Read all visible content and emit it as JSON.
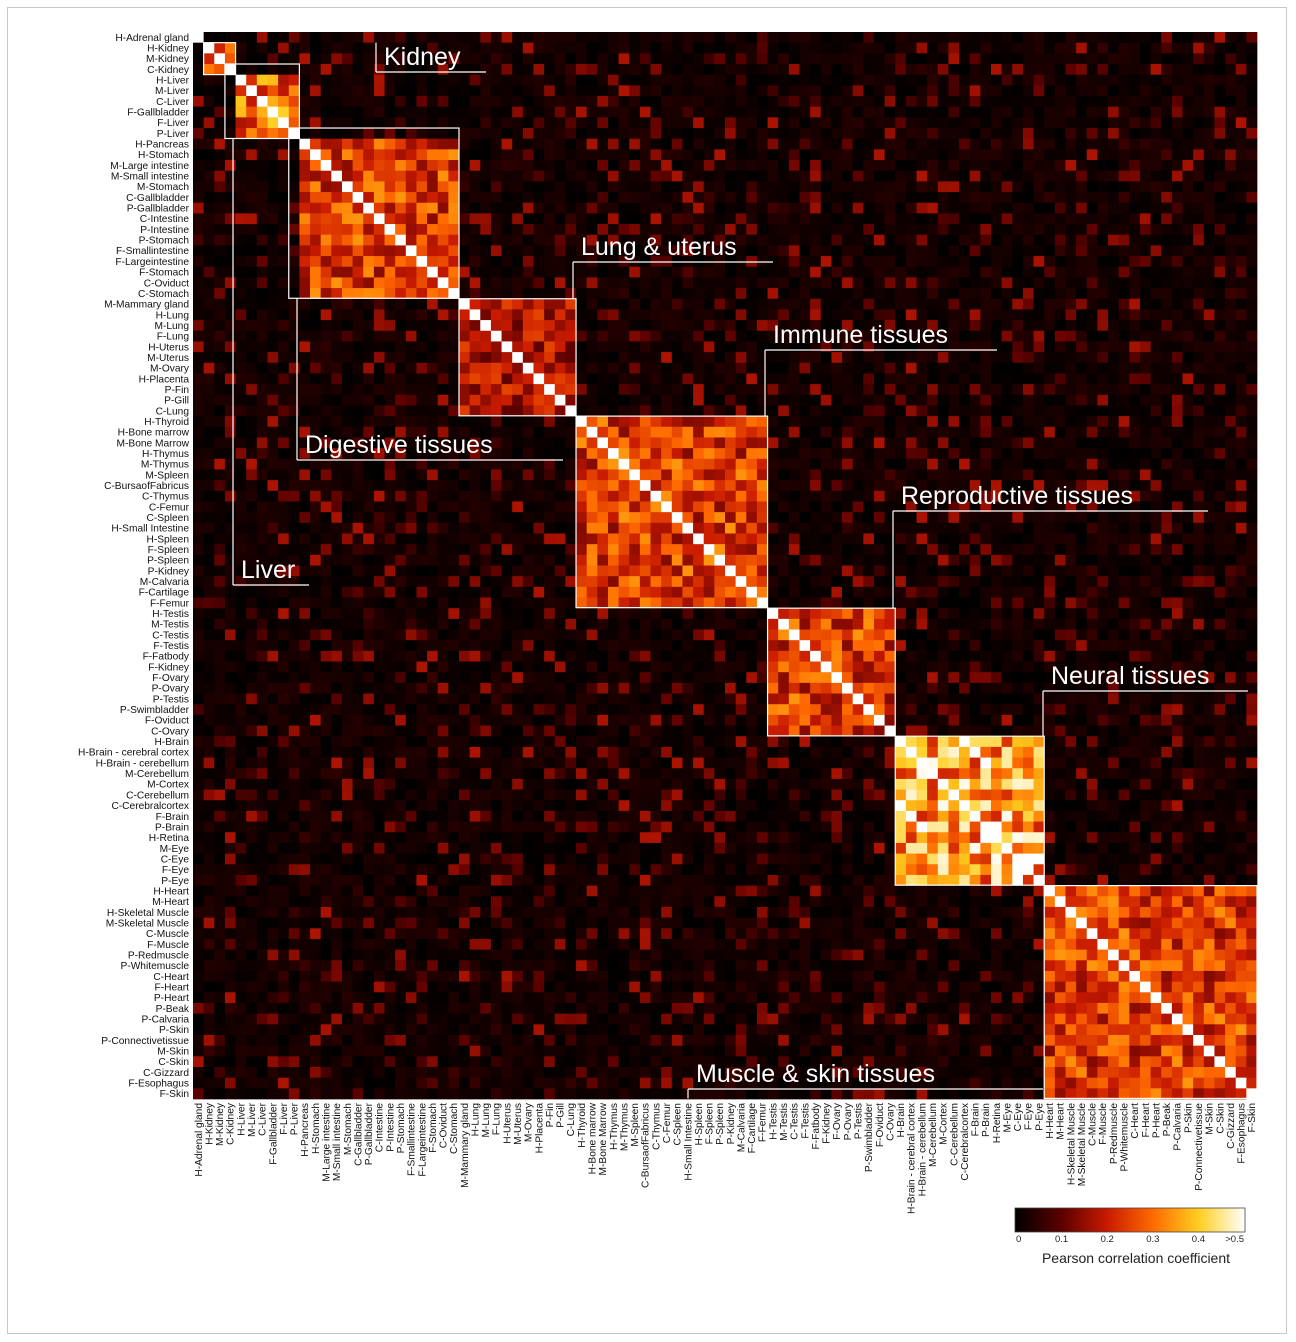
{
  "chart_data": {
    "type": "heatmap",
    "labels": [
      "H-Adrenal gland",
      "H-Kidney",
      "M-Kidney",
      "C-Kidney",
      "H-Liver",
      "M-Liver",
      "C-Liver",
      "F-Gallbladder",
      "F-Liver",
      "P-Liver",
      "H-Pancreas",
      "H-Stomach",
      "M-Large intestine",
      "M-Small intestine",
      "M-Stomach",
      "C-Gallbladder",
      "P-Gallbladder",
      "C-Intestine",
      "P-Intestine",
      "P-Stomach",
      "F-Smallintestine",
      "F-Largeintestine",
      "F-Stomach",
      "C-Oviduct",
      "C-Stomach",
      "M-Mammary gland",
      "H-Lung",
      "M-Lung",
      "F-Lung",
      "H-Uterus",
      "M-Uterus",
      "M-Ovary",
      "H-Placenta",
      "P-Fin",
      "P-Gill",
      "C-Lung",
      "H-Thyroid",
      "H-Bone marrow",
      "M-Bone Marrow",
      "H-Thymus",
      "M-Thymus",
      "M-Spleen",
      "C-BursaofFabricus",
      "C-Thymus",
      "C-Femur",
      "C-Spleen",
      "H-Small Intestine",
      "H-Spleen",
      "F-Spleen",
      "P-Spleen",
      "P-Kidney",
      "M-Calvaria",
      "F-Cartilage",
      "F-Femur",
      "H-Testis",
      "M-Testis",
      "C-Testis",
      "F-Testis",
      "F-Fatbody",
      "F-Kidney",
      "F-Ovary",
      "P-Ovary",
      "P-Testis",
      "P-Swimbladder",
      "F-Oviduct",
      "C-Ovary",
      "H-Brain",
      "H-Brain - cerebral cortex",
      "H-Brain - cerebellum",
      "M-Cerebellum",
      "M-Cortex",
      "C-Cerebellum",
      "C-Cerebralcortex",
      "F-Brain",
      "P-Brain",
      "H-Retina",
      "M-Eye",
      "C-Eye",
      "F-Eye",
      "P-Eye",
      "H-Heart",
      "M-Heart",
      "H-Skeletal Muscle",
      "M-Skeletal Muscle",
      "C-Muscle",
      "F-Muscle",
      "P-Redmuscle",
      "P-Whitemuscle",
      "C-Heart",
      "F-Heart",
      "P-Heart",
      "P-Beak",
      "P-Calvaria",
      "P-Skin",
      "P-Connectivetissue",
      "M-Skin",
      "C-Skin",
      "C-Gizzard",
      "F-Esophagus",
      "F-Skin"
    ],
    "clusters": [
      {
        "name": "Kidney",
        "start": 1,
        "end": 3
      },
      {
        "name": "Liver",
        "start": 3,
        "end": 9
      },
      {
        "name": "Digestive tissues",
        "start": 9,
        "end": 24
      },
      {
        "name": "Lung & uterus",
        "start": 25,
        "end": 35
      },
      {
        "name": "Immune tissues",
        "start": 36,
        "end": 53
      },
      {
        "name": "Reproductive tissues",
        "start": 54,
        "end": 65
      },
      {
        "name": "Neural tissues",
        "start": 66,
        "end": 79
      },
      {
        "name": "Muscle & skin tissues",
        "start": 80,
        "end": 99
      }
    ],
    "colorbar": {
      "title": "Pearson correlation coefficient",
      "ticks": [
        "0",
        "0.1",
        "0.2",
        "0.3",
        "0.4",
        ">0.5"
      ],
      "range": [
        0,
        0.5
      ],
      "colors": [
        "#000000",
        "#5a0000",
        "#c81a00",
        "#ff6a00",
        "#ffcf20",
        "#ffffff"
      ]
    }
  }
}
